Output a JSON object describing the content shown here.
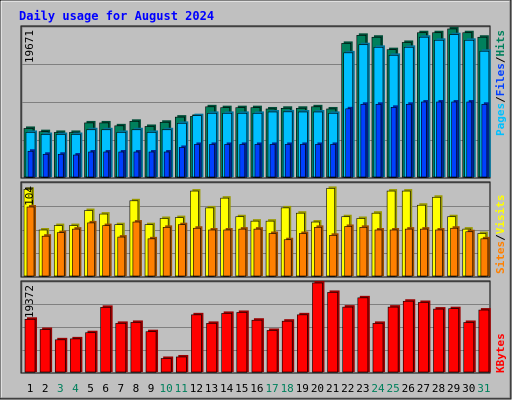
{
  "chart_data": {
    "type": "bar",
    "title": "Daily usage for August 2024",
    "categories": [
      "1",
      "2",
      "3",
      "4",
      "5",
      "6",
      "7",
      "8",
      "9",
      "10",
      "11",
      "12",
      "13",
      "14",
      "15",
      "16",
      "17",
      "18",
      "19",
      "20",
      "21",
      "22",
      "23",
      "24",
      "25",
      "26",
      "27",
      "28",
      "29",
      "30",
      "31"
    ],
    "weekend_days": [
      "3",
      "4",
      "10",
      "11",
      "17",
      "18",
      "24",
      "25",
      "31"
    ],
    "panels": [
      {
        "id": "top",
        "ymax_label": "19671",
        "ylim": [
          0,
          19671
        ],
        "legend": [
          "Pages",
          "/",
          "Files",
          "/",
          "Hits"
        ],
        "series": [
          {
            "name": "Hits",
            "values": [
              6410,
              5985,
              5882,
              5882,
              7137,
              7137,
              6754,
              7350,
              6670,
              7224,
              7905,
              7998,
              9264,
              9154,
              9154,
              9154,
              8981,
              9071,
              9071,
              9264,
              8981,
              17638,
              18702,
              18451,
              16812,
              17763,
              19045,
              19045,
              19545,
              19045,
              18451
            ]
          },
          {
            "name": "Files",
            "values": [
              5883,
              5610,
              5610,
              5610,
              6235,
              6235,
              5881,
              6235,
              5883,
              6235,
              7080,
              8095,
              8400,
              8400,
              8400,
              8400,
              8581,
              8600,
              8581,
              8581,
              8400,
              16390,
              17463,
              17118,
              16060,
              17118,
              18451,
              18048,
              18786,
              18048,
              16600
            ]
          },
          {
            "name": "Pages",
            "values": [
              3400,
              3000,
              3000,
              2900,
              3300,
              3300,
              3300,
              3300,
              3300,
              3300,
              3900,
              4300,
              4300,
              4300,
              4300,
              4300,
              4300,
              4300,
              4300,
              4300,
              4300,
              9000,
              9600,
              9600,
              9200,
              9600,
              9900,
              9900,
              9900,
              9900,
              9600
            ]
          }
        ]
      },
      {
        "id": "mid",
        "ymax_label": "104",
        "ylim": [
          0,
          104
        ],
        "legend": [
          "Sites",
          "/",
          "Visits"
        ],
        "series": [
          {
            "name": "Visits",
            "values": [
              98,
              52,
              57,
              57,
              74,
              70,
              58,
              85,
              58,
              65,
              66,
              96,
              77,
              88,
              67,
              62,
              62,
              77,
              71,
              61,
              99,
              67,
              65,
              71,
              96,
              96,
              80,
              89,
              67,
              53,
              48
            ]
          },
          {
            "name": "Sites",
            "values": [
              78,
              45,
              49,
              53,
              60,
              57,
              44,
              61,
              42,
              55,
              58,
              54,
              52,
              52,
              53,
              53,
              48,
              41,
              48,
              55,
              46,
              56,
              55,
              52,
              52,
              53,
              53,
              52,
              54,
              50,
              42
            ]
          }
        ]
      },
      {
        "id": "bot",
        "ymax_label": "19372",
        "ylim": [
          0,
          19372
        ],
        "legend": [
          "KBytes"
        ],
        "series": [
          {
            "name": "KBytes",
            "values": [
              11470,
              9250,
              7000,
              7210,
              8550,
              14070,
              10580,
              10790,
              8770,
              2940,
              3270,
              12440,
              10580,
              12750,
              12960,
              11270,
              9040,
              11060,
              12440,
              19370,
              17320,
              14120,
              16140,
              10580,
              14120,
              15400,
              15130,
              13690,
              13780,
              10780,
              13480
            ]
          }
        ]
      }
    ],
    "colors": {
      "background": "#c0c0c0",
      "hits": "#00805c",
      "files": "#0040ff",
      "pages": "#00c0ff",
      "visits": "#ffff00",
      "sites": "#ff8000",
      "kbytes": "#ff0000",
      "title": "#0000ff",
      "weekend_label": "#00805c",
      "weekday_label": "#000000"
    }
  }
}
